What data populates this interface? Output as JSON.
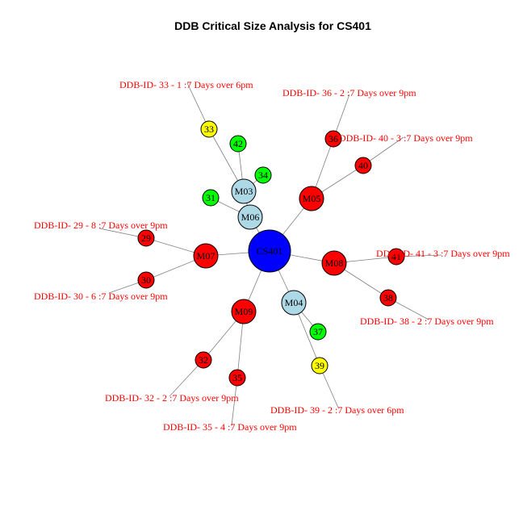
{
  "title": "DDB Critical Size Analysis for  CS401",
  "colors": {
    "center": "#0000ff",
    "mid": "#add8e6",
    "critical": "#ff0000",
    "warning": "#ffff00",
    "ok": "#00ff00",
    "annotation": "#ff0000",
    "edge": "#808080"
  },
  "nodes": [
    {
      "id": "CS401",
      "label": "CS401",
      "status": "center"
    },
    {
      "id": "M03",
      "label": "M03",
      "status": "mid"
    },
    {
      "id": "M06",
      "label": "M06",
      "status": "mid"
    },
    {
      "id": "M05",
      "label": "M05",
      "status": "critical"
    },
    {
      "id": "M07",
      "label": "M07",
      "status": "critical"
    },
    {
      "id": "M08",
      "label": "M08",
      "status": "critical"
    },
    {
      "id": "M09",
      "label": "M09",
      "status": "critical"
    },
    {
      "id": "M04",
      "label": "M04",
      "status": "mid"
    },
    {
      "id": "33",
      "label": "33",
      "status": "warning"
    },
    {
      "id": "42",
      "label": "42",
      "status": "ok"
    },
    {
      "id": "34",
      "label": "34",
      "status": "ok"
    },
    {
      "id": "31",
      "label": "31",
      "status": "ok"
    },
    {
      "id": "36",
      "label": "36",
      "status": "critical"
    },
    {
      "id": "40",
      "label": "40",
      "status": "critical"
    },
    {
      "id": "29",
      "label": "29",
      "status": "critical"
    },
    {
      "id": "30",
      "label": "30",
      "status": "critical"
    },
    {
      "id": "41",
      "label": "41",
      "status": "critical"
    },
    {
      "id": "38",
      "label": "38",
      "status": "critical"
    },
    {
      "id": "32",
      "label": "32",
      "status": "critical"
    },
    {
      "id": "35",
      "label": "35",
      "status": "critical"
    },
    {
      "id": "37",
      "label": "37",
      "status": "ok"
    },
    {
      "id": "39",
      "label": "39",
      "status": "warning"
    }
  ],
  "edges": [
    [
      "CS401",
      "M06"
    ],
    [
      "M06",
      "M03"
    ],
    [
      "CS401",
      "M05"
    ],
    [
      "CS401",
      "M07"
    ],
    [
      "CS401",
      "M08"
    ],
    [
      "CS401",
      "M09"
    ],
    [
      "CS401",
      "M04"
    ],
    [
      "M03",
      "33"
    ],
    [
      "M03",
      "42"
    ],
    [
      "M03",
      "34"
    ],
    [
      "M06",
      "31"
    ],
    [
      "M05",
      "36"
    ],
    [
      "M05",
      "40"
    ],
    [
      "M07",
      "29"
    ],
    [
      "M07",
      "30"
    ],
    [
      "M08",
      "41"
    ],
    [
      "M08",
      "38"
    ],
    [
      "M09",
      "32"
    ],
    [
      "M09",
      "35"
    ],
    [
      "M04",
      "37"
    ],
    [
      "M04",
      "39"
    ]
  ],
  "annotations": [
    {
      "node": "33",
      "text": "DDB-ID- 33 - 1 :7 Days over 6pm"
    },
    {
      "node": "36",
      "text": "DDB-ID- 36 - 2 :7 Days over 9pm"
    },
    {
      "node": "40",
      "text": "DDB-ID- 40 - 3 :7 Days over 9pm"
    },
    {
      "node": "29",
      "text": "DDB-ID- 29 - 8 :7 Days over 9pm"
    },
    {
      "node": "30",
      "text": "DDB-ID- 30 - 6 :7 Days over 9pm"
    },
    {
      "node": "41",
      "text": "DDB-ID- 41 - 3 :7 Days over 9pm"
    },
    {
      "node": "38",
      "text": "DDB-ID- 38 - 2 :7 Days over 9pm"
    },
    {
      "node": "32",
      "text": "DDB-ID- 32 - 2 :7 Days over 9pm"
    },
    {
      "node": "35",
      "text": "DDB-ID- 35 - 4 :7 Days over 9pm"
    },
    {
      "node": "39",
      "text": "DDB-ID- 39 - 2 :7 Days over 6pm"
    }
  ]
}
